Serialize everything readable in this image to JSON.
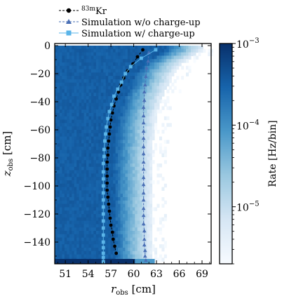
{
  "chart_data": {
    "type": "scatter",
    "xlabel": "r",
    "xlabel_sub": "obs",
    "xlabel_unit": " [cm]",
    "ylabel": "z",
    "ylabel_sub": "obs",
    "ylabel_unit": " [cm]",
    "xlim": [
      49.6,
      70.2
    ],
    "ylim": [
      -155.5,
      1.5
    ],
    "xticks": [
      51,
      54,
      57,
      60,
      63,
      66,
      69
    ],
    "yticks": [
      0,
      -20,
      -40,
      -60,
      -80,
      -100,
      -120,
      -140
    ],
    "grid": false,
    "legend_position": "top-center",
    "colorbar": {
      "label": "Rate [Hz/bin]",
      "scale": "log",
      "range": [
        2e-06,
        0.001
      ],
      "ticks": [
        {
          "base": "10",
          "exp": "−3",
          "value": 0.001
        },
        {
          "base": "10",
          "exp": "−4",
          "value": 0.0001
        },
        {
          "base": "10",
          "exp": "−5",
          "value": 1e-05
        }
      ]
    },
    "heatmap": {
      "description_values": "rate density in r-z bins",
      "peak_rate": 0.0008
    },
    "series": [
      {
        "name_sup": "83m",
        "name_main": "Kr",
        "color": "#000000",
        "marker": "circle",
        "line": "dashed",
        "x": [
          61.2,
          60.5,
          59.9,
          59.2,
          58.7,
          58.3,
          58.0,
          57.7,
          57.4,
          57.2,
          57.0,
          56.9,
          56.8,
          56.7,
          56.6,
          56.6,
          56.5,
          56.5,
          56.5,
          56.5,
          56.5,
          56.6,
          56.7,
          56.8,
          56.9,
          57.0,
          57.2,
          57.3,
          57.5,
          57.7
        ],
        "y": [
          -3,
          -8,
          -13,
          -18,
          -23,
          -28,
          -33,
          -38,
          -43,
          -48,
          -53,
          -58,
          -63,
          -68,
          -73,
          -78,
          -83,
          -88,
          -93,
          -98,
          -103,
          -108,
          -113,
          -118,
          -123,
          -128,
          -133,
          -138,
          -143,
          -148
        ]
      },
      {
        "name": "Simulation w/o charge-up",
        "color": "#4a6fb5",
        "marker": "triangle",
        "line": "dashed",
        "x": [
          62.0,
          61.9,
          61.7,
          61.6,
          61.5,
          61.4,
          61.4,
          61.3,
          61.3,
          61.3,
          61.3,
          61.3,
          61.3,
          61.3,
          61.3,
          61.3,
          61.3,
          61.3,
          61.3,
          61.3,
          61.3,
          61.3,
          61.3,
          61.4,
          61.4,
          61.4,
          61.5,
          61.5,
          61.6
        ],
        "y": [
          -5,
          -11,
          -16,
          -22,
          -28,
          -33,
          -39,
          -44,
          -50,
          -55,
          -61,
          -66,
          -72,
          -77,
          -83,
          -88,
          -94,
          -99,
          -105,
          -110,
          -116,
          -121,
          -127,
          -132,
          -138,
          -142,
          -146,
          -150,
          -153
        ]
      },
      {
        "name": "Simulation w/ charge-up",
        "color": "#5ab4e8",
        "marker": "square",
        "line": "solid",
        "x": [
          62.9,
          61.0,
          59.6,
          58.9,
          58.4,
          57.9,
          57.4,
          57.1,
          56.8,
          56.6,
          56.4,
          56.3,
          56.2,
          56.1,
          56.1,
          56.0,
          56.0,
          56.0,
          56.0,
          56.0,
          56.0,
          56.0,
          56.0,
          56.0,
          56.0,
          56.0,
          56.0,
          56.0,
          56.0,
          56.0,
          56.0
        ],
        "y": [
          -3,
          -9,
          -15,
          -20,
          -26,
          -31,
          -36,
          -42,
          -47,
          -52,
          -58,
          -63,
          -68,
          -74,
          -79,
          -84,
          -90,
          -95,
          -100,
          -105,
          -110,
          -115,
          -120,
          -125,
          -130,
          -135,
          -140,
          -144,
          -148,
          -151,
          -154
        ]
      }
    ]
  }
}
